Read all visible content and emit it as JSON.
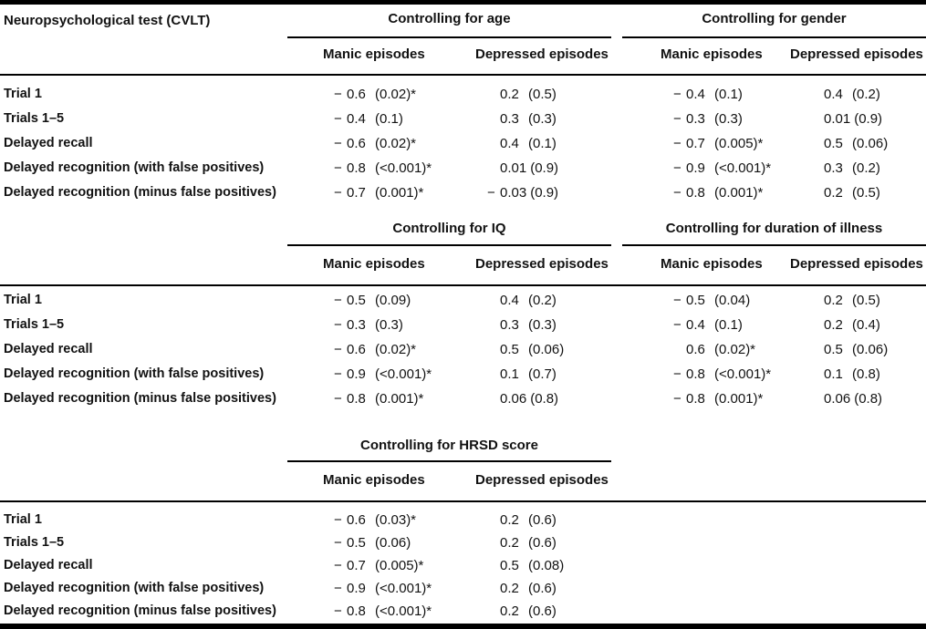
{
  "table": {
    "row_header": "Neuropsychological test (CVLT)",
    "col_manic": "Manic episodes",
    "col_depressed": "Depressed episodes",
    "rows": [
      "Trial 1",
      "Trials 1–5",
      "Delayed recall",
      "Delayed recognition (with false positives)",
      "Delayed recognition (minus false positives)"
    ],
    "sections": [
      {
        "groups": [
          {
            "title": "Controlling for age",
            "manic": [
              "−0.6 (0.02)*",
              "−0.4 (0.1)",
              "−0.6 (0.02)*",
              "−0.8 (<0.001)*",
              "−0.7 (0.001)*"
            ],
            "depressed": [
              "0.2 (0.5)",
              "0.3 (0.3)",
              "0.4 (0.1)",
              "0.01 (0.9)",
              "−0.03 (0.9)"
            ]
          },
          {
            "title": "Controlling for gender",
            "manic": [
              "−0.4 (0.1)",
              "−0.3 (0.3)",
              "−0.7 (0.005)*",
              "−0.9 (<0.001)*",
              "−0.8 (0.001)*"
            ],
            "depressed": [
              "0.4 (0.2)",
              "0.01 (0.9)",
              "0.5 (0.06)",
              "0.3 (0.2)",
              "0.2 (0.5)"
            ]
          }
        ]
      },
      {
        "groups": [
          {
            "title": "Controlling for IQ",
            "manic": [
              "−0.5 (0.09)",
              "−0.3 (0.3)",
              "−0.6 (0.02)*",
              "−0.9 (<0.001)*",
              "−0.8 (0.001)*"
            ],
            "depressed": [
              "0.4 (0.2)",
              "0.3 (0.3)",
              "0.5 (0.06)",
              "0.1 (0.7)",
              "0.06 (0.8)"
            ]
          },
          {
            "title": "Controlling for duration of illness",
            "manic": [
              "−0.5 (0.04)",
              "−0.4 (0.1)",
              "0.6 (0.02)*",
              "−0.8 (<0.001)*",
              "−0.8 (0.001)*"
            ],
            "depressed": [
              "0.2 (0.5)",
              "0.2 (0.4)",
              "0.5 (0.06)",
              "0.1 (0.8)",
              "0.06 (0.8)"
            ]
          }
        ]
      },
      {
        "groups": [
          {
            "title": "Controlling for HRSD score",
            "manic": [
              "−0.6 (0.03)*",
              "−0.5 (0.06)",
              "−0.7 (0.005)*",
              "−0.9 (<0.001)*",
              "−0.8 (<0.001)*"
            ],
            "depressed": [
              "0.2 (0.6)",
              "0.2 (0.6)",
              "0.5 (0.08)",
              "0.2 (0.6)",
              "0.2 (0.6)"
            ]
          }
        ]
      }
    ],
    "significance_marker": "*"
  }
}
